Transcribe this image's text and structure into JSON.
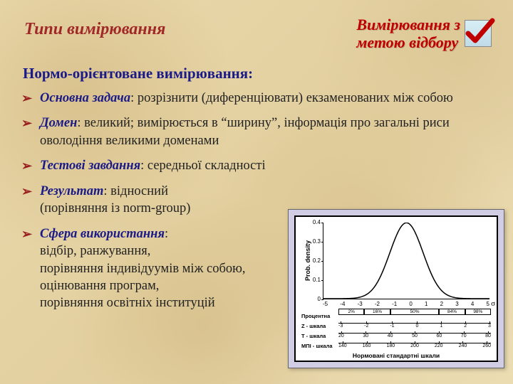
{
  "header": {
    "title_left": "Типи вимірювання",
    "title_right": "Вимірювання з\nметою відбору"
  },
  "subtitle": "Нормо-орієнтоване вимірювання:",
  "bullets": [
    {
      "term": "Основна задача",
      "text": ": розрізнити (диференціювати) екзаменованих між собою",
      "limit": false
    },
    {
      "term": "Домен",
      "text": ": великий; вимірюється в “ширину”, інформація про загальні риси оволодіння великими доменами",
      "limit": false
    },
    {
      "term": "Тестові завдання",
      "text": ": середньої складності",
      "limit": false
    },
    {
      "term": "Результат",
      "text": ": відносний\n(порівняння із norm-group)",
      "limit": true
    },
    {
      "term": "Сфера використання",
      "text": ":\nвідбір, ранжування,\nпорівняння індивідуумів між собою,\nоцінювання програм,\nпорівняння освітніх інституцій",
      "limit": true
    }
  ],
  "chart": {
    "type": "normal-curve",
    "ylabel": "Prob. density",
    "yticks": [
      {
        "v": "0",
        "pos": 100
      },
      {
        "v": "0.1",
        "pos": 75
      },
      {
        "v": "0.2",
        "pos": 50
      },
      {
        "v": "0.3",
        "pos": 25
      },
      {
        "v": "0.4",
        "pos": 0
      }
    ],
    "xticks": [
      "-5",
      "-4",
      "-3",
      "-2",
      "-1",
      "0",
      "1",
      "2",
      "3",
      "4",
      "5"
    ],
    "sigma": "σ",
    "curve_color": "#000000",
    "curve_width": 1.5,
    "bg": "#ffffff",
    "percent_row": {
      "label": "Процентна",
      "boxes": [
        "2%",
        "16%",
        "50%",
        "84%",
        "98%"
      ]
    },
    "scales": [
      {
        "label": "Z - шкала",
        "ticks": [
          "-3",
          "-2",
          "-1",
          "0",
          "1",
          "2",
          "3"
        ]
      },
      {
        "label": "T - шкала",
        "ticks": [
          "20",
          "30",
          "40",
          "50",
          "60",
          "70",
          "80"
        ]
      },
      {
        "label": "МПІ - шкала",
        "ticks": [
          "140",
          "160",
          "180",
          "200",
          "220",
          "240",
          "260"
        ]
      }
    ],
    "footer": "Нормовані стандартні шкали"
  },
  "colors": {
    "accent_red": "#a12828",
    "bright_red": "#c00000",
    "term_blue": "#1a1a88",
    "chart_panel_bg": "#d0cde4"
  }
}
